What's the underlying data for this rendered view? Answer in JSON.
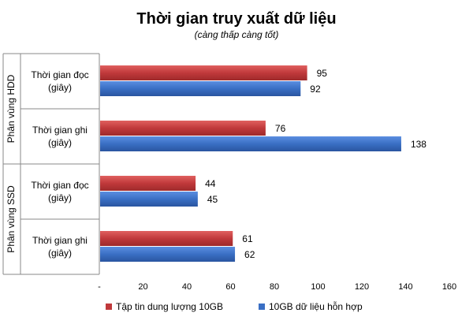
{
  "chart_data": {
    "type": "bar",
    "orientation": "horizontal",
    "title": "Thời gian truy xuất dữ liệu",
    "subtitle": "(càng thấp càng tốt)",
    "groups": [
      {
        "label": "Phân vùng HDD",
        "categories": [
          {
            "line1": "Thời gian đọc",
            "line2": "(giây)"
          },
          {
            "line1": "Thời gian ghi",
            "line2": "(giây)"
          }
        ]
      },
      {
        "label": "Phân vùng SSD",
        "categories": [
          {
            "line1": "Thời gian đọc",
            "line2": "(giây)"
          },
          {
            "line1": "Thời gian ghi",
            "line2": "(giây)"
          }
        ]
      }
    ],
    "series": [
      {
        "name": "Tập tin dung lượng 10GB",
        "color": "#c0393b",
        "values": [
          95,
          76,
          44,
          61
        ]
      },
      {
        "name": "10GB dữ liệu hỗn hợp",
        "color": "#3a6fc4",
        "values": [
          92,
          138,
          45,
          62
        ]
      }
    ],
    "xlim": [
      0,
      160
    ],
    "xticks": [
      0,
      20,
      40,
      60,
      80,
      100,
      120,
      140,
      160
    ],
    "xtick_labels": [
      "-",
      "20",
      "40",
      "60",
      "80",
      "100",
      "120",
      "140",
      "160"
    ],
    "grid": false,
    "legend": "bottom"
  }
}
